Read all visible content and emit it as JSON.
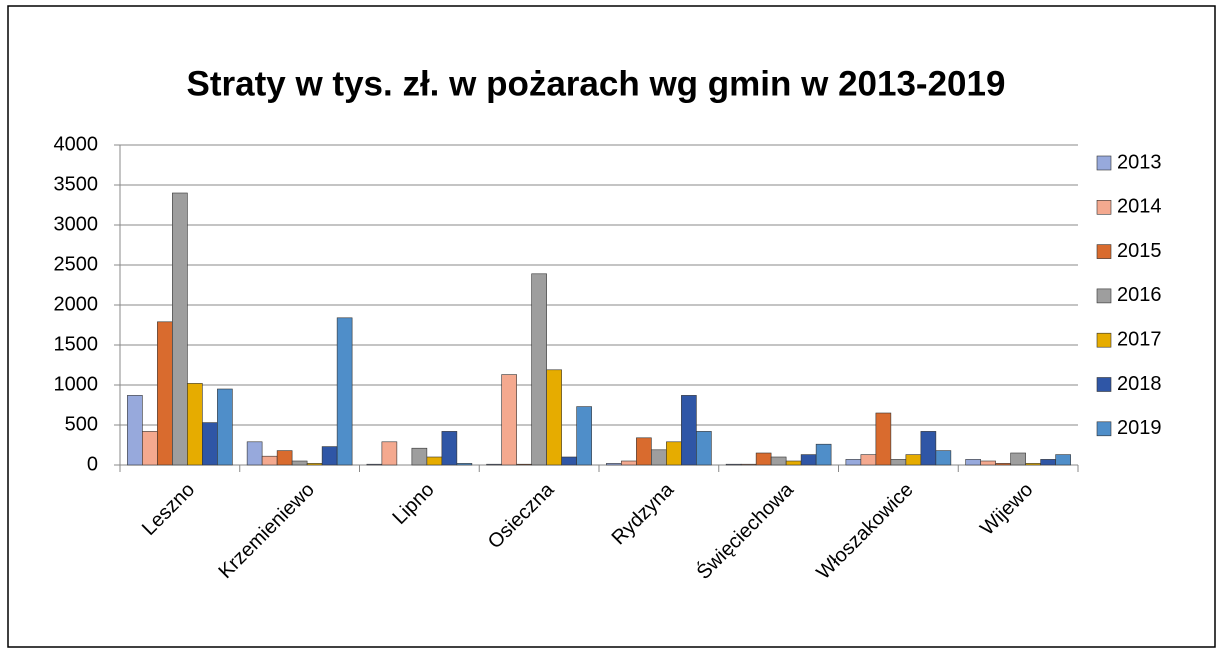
{
  "chart_data": {
    "type": "bar",
    "title": "Straty w tys. zł. w pożarach wg gmin w 2013-2019",
    "categories": [
      "Leszno",
      "Krzemieniewo",
      "Lipno",
      "Osieczna",
      "Rydzyna",
      "Święciechowa",
      "Włoszakowice",
      "Wijewo"
    ],
    "series": [
      {
        "name": "2013",
        "color": "#97a9dc",
        "values": [
          870,
          290,
          10,
          10,
          20,
          10,
          70,
          70
        ]
      },
      {
        "name": "2014",
        "color": "#f4a98f",
        "values": [
          420,
          110,
          290,
          1130,
          50,
          10,
          130,
          50
        ]
      },
      {
        "name": "2015",
        "color": "#d96b2e",
        "values": [
          1790,
          180,
          0,
          10,
          340,
          150,
          650,
          20
        ]
      },
      {
        "name": "2016",
        "color": "#9e9e9e",
        "values": [
          3400,
          50,
          210,
          2390,
          190,
          100,
          70,
          150
        ]
      },
      {
        "name": "2017",
        "color": "#e6ac00",
        "values": [
          1020,
          20,
          100,
          1190,
          290,
          50,
          130,
          20
        ]
      },
      {
        "name": "2018",
        "color": "#2f56a6",
        "values": [
          530,
          230,
          420,
          100,
          870,
          130,
          420,
          70
        ]
      },
      {
        "name": "2019",
        "color": "#4f8ec9",
        "values": [
          950,
          1840,
          20,
          730,
          420,
          260,
          180,
          130
        ]
      }
    ],
    "ylim": [
      0,
      4000
    ],
    "yticks": [
      0,
      500,
      1000,
      1500,
      2000,
      2500,
      3000,
      3500,
      4000
    ],
    "grid": true,
    "legend": "right"
  }
}
